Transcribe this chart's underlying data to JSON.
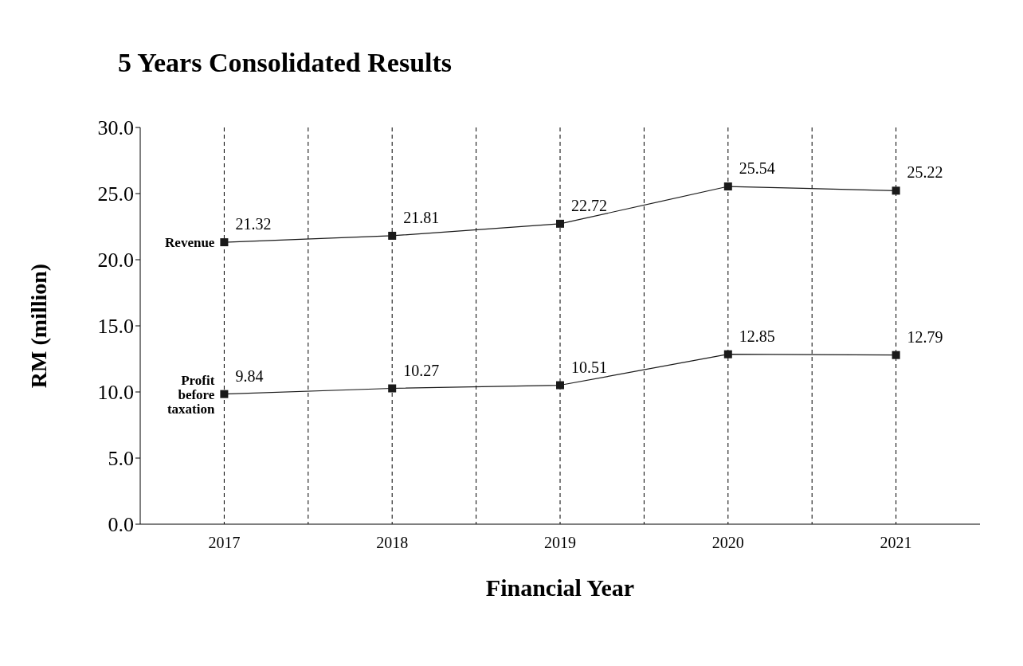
{
  "chart_data": {
    "type": "line",
    "title": "5 Years Consolidated Results",
    "xlabel": "Financial Year",
    "ylabel": "RM (million)",
    "categories": [
      "2017",
      "2018",
      "2019",
      "2020",
      "2021"
    ],
    "series": [
      {
        "name": "Revenue",
        "color": "#1a1a1a",
        "values": [
          21.32,
          21.81,
          22.72,
          25.54,
          25.22
        ]
      },
      {
        "name": "Profit before taxation",
        "color": "#1a1a1a",
        "values": [
          9.84,
          10.27,
          10.51,
          12.85,
          12.79
        ]
      }
    ],
    "ylim": [
      0,
      30
    ],
    "yticks": [
      {
        "value": 0,
        "label": "0.0"
      },
      {
        "value": 5,
        "label": "5.0"
      },
      {
        "value": 10,
        "label": "10.0"
      },
      {
        "value": 15,
        "label": "15.0"
      },
      {
        "value": 20,
        "label": "20.0"
      },
      {
        "value": 25,
        "label": "25.0"
      },
      {
        "value": 30,
        "label": "30.0"
      }
    ],
    "grid": "x",
    "marker": "square",
    "line_style": "solid",
    "data_labels": true
  }
}
